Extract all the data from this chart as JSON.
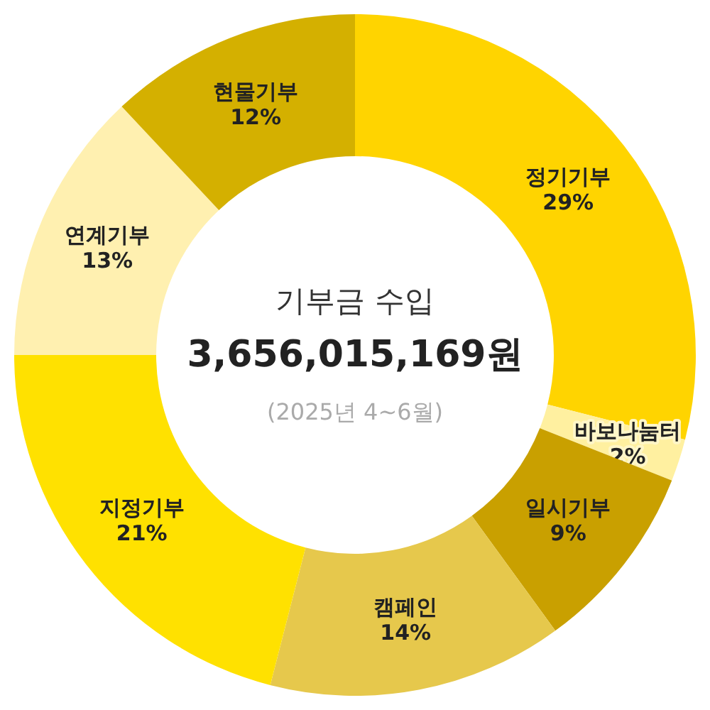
{
  "chart_data": {
    "type": "donut",
    "title": "기부금 수입",
    "subtitle": "3,656,015,169원",
    "annotations": [
      "(2025년 4~6월)"
    ],
    "categories": [
      "정기기부",
      "바보나눔터",
      "일시기부",
      "캠페인",
      "지정기부",
      "연계기부",
      "현물기부"
    ],
    "values": [
      29,
      2,
      9,
      14,
      21,
      13,
      12
    ],
    "value_labels": [
      "29%",
      "2%",
      "9%",
      "14%",
      "21%",
      "13%",
      "12%"
    ],
    "colors": [
      "#ffd400",
      "#fff0a0",
      "#c9a000",
      "#e6c84c",
      "#ffe100",
      "#fff0b0",
      "#d4b000"
    ]
  }
}
